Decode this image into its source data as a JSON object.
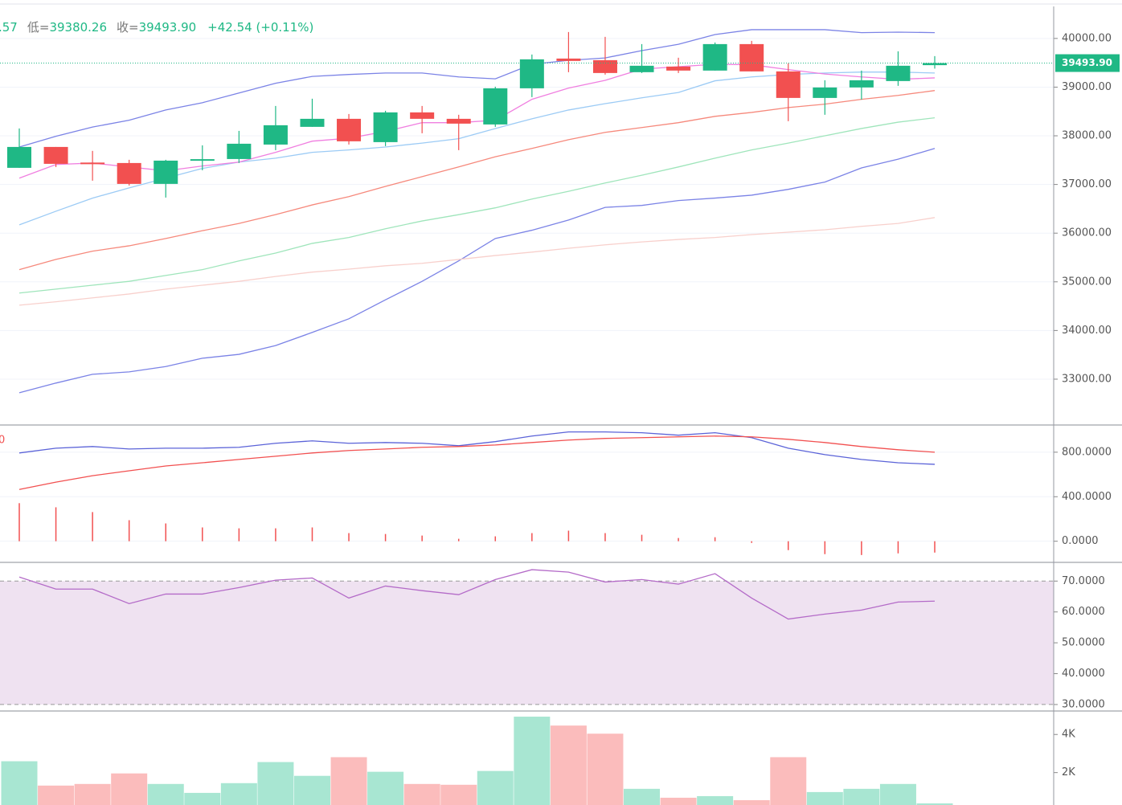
{
  "chart_data": [
    {
      "type": "candlestick",
      "ohlc_text": [
        {
          "text": ".57"
        },
        {
          "label": "低=",
          "text": "39380.26"
        },
        {
          "label": "收=",
          "text": "39493.90"
        },
        {
          "text": "+42.54 (+0.11%)"
        }
      ],
      "up_color": "#1fb885",
      "down_color": "#f25050",
      "open": [
        37342,
        37771,
        37450,
        37441,
        37012,
        37490,
        37523,
        37820,
        38184,
        38349,
        37870,
        38481,
        38349,
        38233,
        38976,
        39587,
        39554,
        39307,
        39422,
        39340,
        39884,
        39323,
        38778,
        38993,
        39125,
        39451.36
      ],
      "high": [
        38151,
        37771,
        37690,
        37507,
        37507,
        37804,
        38101,
        38613,
        38762,
        38448,
        38514,
        38613,
        38432,
        39009,
        39670,
        40132,
        40033,
        39884,
        39604,
        39917,
        39950,
        39488,
        39141,
        39340,
        39736,
        39637
      ],
      "low": [
        37342,
        37358,
        37078,
        36979,
        36731,
        37292,
        37441,
        37705,
        38184,
        37821,
        37788,
        38052,
        37705,
        38184,
        38795,
        39307,
        39257,
        39290,
        39290,
        39340,
        39323,
        38300,
        38432,
        38745,
        39026,
        39380.26
      ],
      "close": [
        37771,
        37424,
        37440,
        37012,
        37490,
        37520,
        37837,
        38217,
        38349,
        37887,
        38481,
        38349,
        38250,
        38976,
        39571,
        39538,
        39290,
        39439,
        39340,
        39884,
        39323,
        38778,
        38993,
        39141,
        39439,
        39493.9
      ],
      "series": [
        {
          "color": "#7b83e6",
          "values": [
            37770,
            37990,
            38180,
            38320,
            38530,
            38680,
            38880,
            39080,
            39220,
            39260,
            39290,
            39290,
            39210,
            39170,
            39470,
            39550,
            39600,
            39750,
            39880,
            40080,
            40180,
            40180,
            40180,
            40120,
            40130,
            40120
          ]
        },
        {
          "color": "#7b83e6",
          "values": [
            32720,
            32920,
            33100,
            33150,
            33260,
            33430,
            33510,
            33690,
            33960,
            34240,
            34630,
            35010,
            35430,
            35890,
            36060,
            36270,
            36530,
            36570,
            36670,
            36720,
            36780,
            36900,
            37050,
            37340,
            37520,
            37740
          ]
        },
        {
          "color": "#9ccbf5",
          "values": [
            36170,
            36450,
            36720,
            36930,
            37130,
            37330,
            37460,
            37540,
            37660,
            37710,
            37770,
            37850,
            37940,
            38150,
            38350,
            38530,
            38660,
            38780,
            38890,
            39130,
            39210,
            39260,
            39290,
            39310,
            39310,
            39290
          ]
        },
        {
          "color": "#f07fe0",
          "values": [
            37130,
            37410,
            37440,
            37360,
            37280,
            37380,
            37460,
            37660,
            37890,
            37950,
            38090,
            38270,
            38270,
            38320,
            38750,
            38980,
            39140,
            39370,
            39420,
            39470,
            39460,
            39360,
            39270,
            39210,
            39160,
            39190
          ]
        },
        {
          "color": "#f6897c",
          "values": [
            35250,
            35460,
            35630,
            35740,
            35890,
            36050,
            36200,
            36380,
            36580,
            36750,
            36960,
            37160,
            37360,
            37570,
            37740,
            37920,
            38070,
            38170,
            38270,
            38400,
            38480,
            38580,
            38650,
            38750,
            38830,
            38930
          ]
        },
        {
          "color": "#9fe5bb",
          "values": [
            34770,
            34850,
            34930,
            35010,
            35130,
            35250,
            35430,
            35590,
            35790,
            35910,
            36090,
            36250,
            36380,
            36520,
            36700,
            36860,
            37030,
            37190,
            37360,
            37540,
            37710,
            37850,
            38000,
            38150,
            38280,
            38370
          ]
        },
        {
          "color": "#f8d0cc",
          "values": [
            34520,
            34590,
            34670,
            34750,
            34850,
            34930,
            35010,
            35110,
            35200,
            35260,
            35330,
            35380,
            35460,
            35540,
            35610,
            35690,
            35760,
            35820,
            35870,
            35910,
            35970,
            36020,
            36070,
            36140,
            36200,
            36320
          ]
        }
      ],
      "last_price": {
        "value": 39493.9,
        "label": "39493.90"
      },
      "ylim": [
        32075,
        40790
      ],
      "yticks": [
        {
          "value": 33000,
          "label": "33000.00"
        },
        {
          "value": 34000,
          "label": "34000.00"
        },
        {
          "value": 35000,
          "label": "35000.00"
        },
        {
          "value": 36000,
          "label": "36000.00"
        },
        {
          "value": 37000,
          "label": "37000.00"
        },
        {
          "value": 38000,
          "label": "38000.00"
        },
        {
          "value": 39000,
          "label": "39000.00"
        },
        {
          "value": 40000,
          "label": "40000.00"
        }
      ],
      "grid": true
    },
    {
      "type": "macd",
      "label": "0",
      "label_color": "#f25050",
      "series": [
        {
          "color": "#5b63d8",
          "values": [
            793,
            836,
            851,
            829,
            836,
            836,
            844,
            880,
            902,
            880,
            887,
            880,
            858,
            895,
            945,
            982,
            982,
            975,
            953,
            975,
            931,
            836,
            778,
            735,
            705,
            691
          ]
        },
        {
          "color": "#f25050",
          "values": [
            465,
            531,
            589,
            633,
            676,
            705,
            735,
            764,
            793,
            815,
            829,
            844,
            851,
            865,
            887,
            909,
            924,
            931,
            938,
            945,
            938,
            916,
            887,
            851,
            822,
            800
          ]
        }
      ],
      "histogram": {
        "color": "#f25050",
        "values": [
          342,
          305,
          262,
          189,
          160,
          124,
          116,
          116,
          124,
          73,
          65,
          51,
          22,
          44,
          73,
          95,
          73,
          58,
          29,
          36,
          -15,
          -80,
          -116,
          -124,
          -109,
          -102
        ]
      },
      "ylim": [
        -190,
        1030
      ],
      "yticks": [
        {
          "value": 0,
          "label": "0.0000"
        },
        {
          "value": 400,
          "label": "400.0000"
        },
        {
          "value": 800,
          "label": "800.0000"
        }
      ],
      "grid": true
    },
    {
      "type": "rsi",
      "band": [
        30,
        70
      ],
      "band_color": "#efe2f1",
      "line_color": "#b46bc8",
      "values": [
        71.3,
        67.4,
        67.4,
        62.7,
        65.8,
        65.8,
        67.9,
        70.3,
        71.0,
        64.5,
        68.4,
        66.9,
        65.6,
        70.5,
        73.7,
        72.9,
        69.7,
        70.5,
        69.0,
        72.4,
        64.5,
        57.7,
        59.3,
        60.6,
        63.2,
        63.5
      ],
      "ylim": [
        27.9,
        75.8
      ],
      "yticks": [
        {
          "value": 30,
          "label": "30.0000"
        },
        {
          "value": 40,
          "label": "40.0000"
        },
        {
          "value": 50,
          "label": "50.0000"
        },
        {
          "value": 60,
          "label": "60.0000"
        },
        {
          "value": 70,
          "label": "70.0000"
        }
      ],
      "grid": false
    },
    {
      "type": "volume",
      "up_color": "#a8e6d2",
      "down_color": "#fbbcbc",
      "values": [
        2596,
        1319,
        1404,
        1957,
        1404,
        936,
        1447,
        2553,
        1830,
        2809,
        2043,
        1404,
        1362,
        2085,
        4936,
        4468,
        4043,
        1149,
        681,
        766,
        553,
        2809,
        979,
        1149,
        1404,
        383
      ],
      "ylim": [
        300,
        5190
      ],
      "yticks": [
        {
          "value": 2000,
          "label": "2K"
        },
        {
          "value": 4000,
          "label": "4K"
        }
      ],
      "grid": false
    }
  ]
}
